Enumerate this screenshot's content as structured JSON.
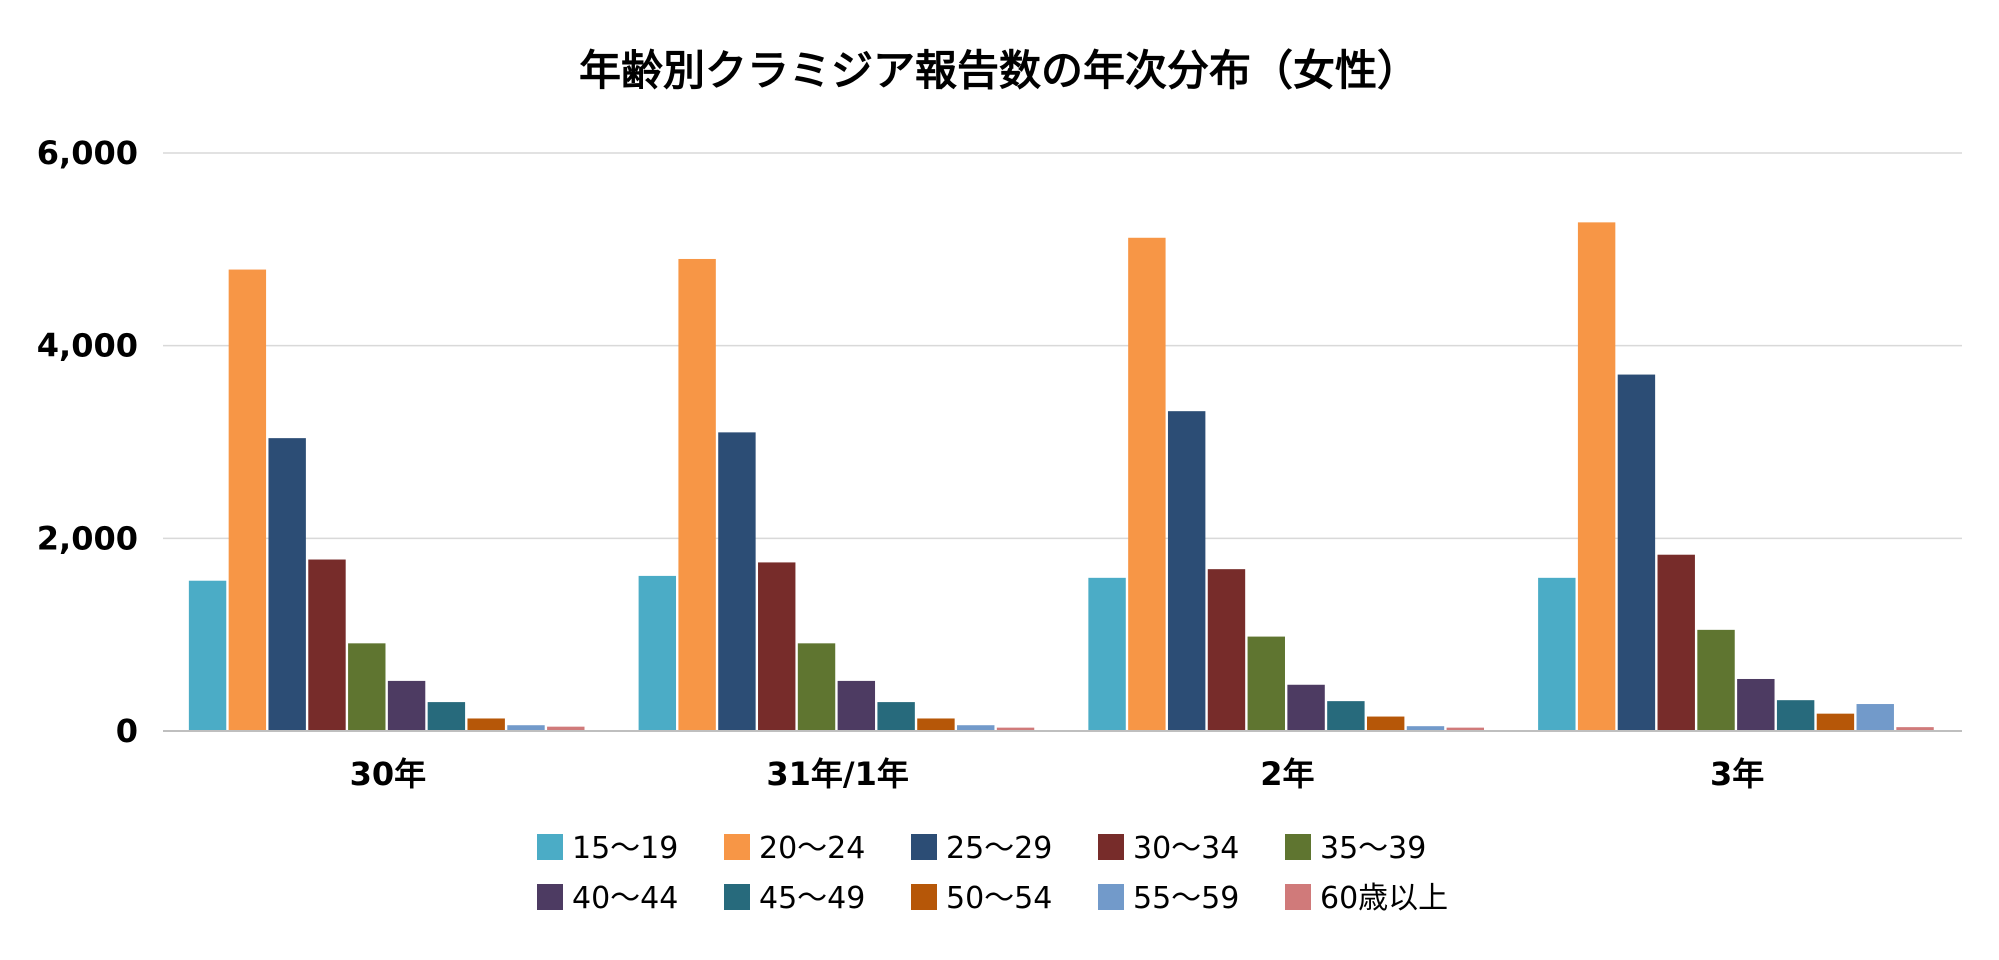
{
  "chart_data": {
    "type": "bar",
    "title": "年齢別クラミジア報告数の年次分布（女性）",
    "xlabel": "",
    "ylabel": "",
    "ylim": [
      0,
      6000
    ],
    "yticks": [
      0,
      2000,
      4000,
      6000
    ],
    "ytick_labels": [
      "0",
      "2,000",
      "4,000",
      "6,000"
    ],
    "grid": true,
    "legend_position": "bottom",
    "categories": [
      "30年",
      "31年/1年",
      "2年",
      "3年"
    ],
    "series": [
      {
        "name": "15～19",
        "color": "#4bacc6",
        "values": [
          1560,
          1610,
          1590,
          1590
        ]
      },
      {
        "name": "20～24",
        "color": "#f79646",
        "values": [
          4790,
          4900,
          5120,
          5280
        ]
      },
      {
        "name": "25～29",
        "color": "#2c4d75",
        "values": [
          3040,
          3100,
          3320,
          3700
        ]
      },
      {
        "name": "30～34",
        "color": "#772c2a",
        "values": [
          1780,
          1750,
          1680,
          1830
        ]
      },
      {
        "name": "35～39",
        "color": "#5f7530",
        "values": [
          910,
          910,
          980,
          1050
        ]
      },
      {
        "name": "40～44",
        "color": "#4d3b62",
        "values": [
          520,
          520,
          480,
          540
        ]
      },
      {
        "name": "45～49",
        "color": "#276a7c",
        "values": [
          300,
          300,
          310,
          320
        ]
      },
      {
        "name": "50～54",
        "color": "#b65708",
        "values": [
          130,
          130,
          150,
          180
        ]
      },
      {
        "name": "55～59",
        "color": "#729aca",
        "values": [
          60,
          60,
          50,
          280
        ]
      },
      {
        "name": "60歳以上",
        "color": "#d07a7a",
        "values": [
          45,
          35,
          35,
          40
        ]
      }
    ]
  }
}
